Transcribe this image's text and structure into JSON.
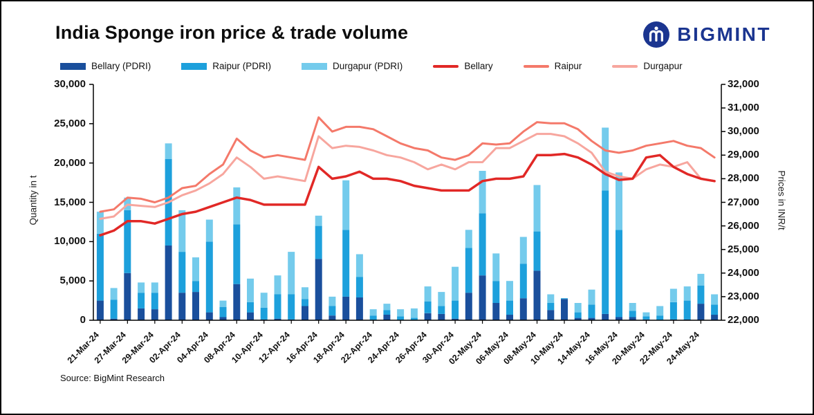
{
  "header": {
    "title": "India Sponge iron price & trade volume",
    "brand": "BIGMINT"
  },
  "footer": {
    "source": "Source: BigMint Research"
  },
  "colors": {
    "brand_navy": "#1b3590",
    "axis_black": "#000000",
    "bar_bellary": "#1a4f9c",
    "bar_raipur": "#1da0dc",
    "bar_durgapur": "#74cbec",
    "line_bellary": "#e12826",
    "line_raipur": "#f4796a",
    "line_durgapur": "#f7a69e"
  },
  "chart_data": {
    "type": "combo",
    "bar_mode": "stacked",
    "grid": "off",
    "legend_position": "top",
    "x_label_every_other_bar": true,
    "x_tick_labels": [
      "21-Mar-24",
      "27-Mar-24",
      "29-Mar-24",
      "02-Apr-24",
      "04-Apr-24",
      "08-Apr-24",
      "10-Apr-24",
      "12-Apr-24",
      "16-Apr-24",
      "18-Apr-24",
      "22-Apr-24",
      "24-Apr-24",
      "26-Apr-24",
      "30-Apr-24",
      "02-May-24",
      "06-May-24",
      "08-May-24",
      "10-May-24",
      "14-May-24",
      "16-May-24",
      "20-May-24",
      "22-May-24",
      "24-May-24"
    ],
    "left_axis": {
      "label": "Quantity in t",
      "min": 0,
      "max": 30000,
      "step": 5000
    },
    "right_axis": {
      "label": "Prices in INR/t",
      "min": 22000,
      "max": 32000,
      "step": 1000
    },
    "bar_series": [
      {
        "name": "Bellary (PDRI)",
        "color": "#1a4f9c",
        "axis": "left",
        "values": [
          2500,
          200,
          6000,
          1500,
          1400,
          9500,
          3500,
          3600,
          1000,
          400,
          4600,
          1000,
          100,
          200,
          100,
          1800,
          7800,
          600,
          3000,
          2900,
          0,
          700,
          0,
          0,
          900,
          800,
          200,
          3500,
          5700,
          2200,
          700,
          2800,
          6300,
          1300,
          2700,
          300,
          300,
          800,
          400,
          400,
          100,
          0,
          100,
          100,
          2100,
          700
        ]
      },
      {
        "name": "Raipur (PDRI)",
        "color": "#1da0dc",
        "axis": "left",
        "values": [
          8500,
          2400,
          8000,
          2000,
          2100,
          11000,
          5200,
          1400,
          9000,
          1300,
          7600,
          1300,
          1500,
          3100,
          3200,
          900,
          4200,
          1200,
          8500,
          2600,
          600,
          600,
          500,
          300,
          1500,
          1000,
          2300,
          5700,
          7900,
          2800,
          1800,
          4400,
          5000,
          900,
          100,
          700,
          1700,
          15700,
          11100,
          800,
          400,
          600,
          2200,
          2400,
          2300,
          1300
        ]
      },
      {
        "name": "Durgapur (PDRI)",
        "color": "#74cbec",
        "axis": "left",
        "values": [
          2800,
          1500,
          1600,
          1300,
          1300,
          2000,
          5300,
          3000,
          2800,
          800,
          4700,
          3000,
          1900,
          2400,
          5400,
          1500,
          1300,
          1200,
          6300,
          2900,
          800,
          800,
          900,
          1200,
          1900,
          1800,
          4300,
          2300,
          5400,
          3500,
          2500,
          3400,
          5900,
          1100,
          0,
          1200,
          1900,
          8000,
          7300,
          1000,
          500,
          1200,
          1700,
          1800,
          1500,
          1300
        ]
      }
    ],
    "line_series": [
      {
        "name": "Bellary",
        "color": "#e12826",
        "axis": "right",
        "values": [
          25600,
          25800,
          26200,
          26200,
          26100,
          26300,
          26500,
          26600,
          26800,
          27000,
          27200,
          27100,
          26900,
          26900,
          26900,
          26900,
          28500,
          28000,
          28100,
          28300,
          28000,
          28000,
          27900,
          27700,
          27600,
          27500,
          27500,
          27500,
          27900,
          28000,
          28000,
          28100,
          29000,
          29000,
          29050,
          28900,
          28600,
          28200,
          27950,
          28000,
          28900,
          29000,
          28500,
          28200,
          28000,
          27900
        ]
      },
      {
        "name": "Raipur",
        "color": "#f4796a",
        "axis": "right",
        "values": [
          26600,
          26700,
          27200,
          27150,
          27000,
          27200,
          27600,
          27700,
          28200,
          28600,
          29700,
          29200,
          28900,
          29000,
          28900,
          28800,
          30600,
          30000,
          30200,
          30200,
          30100,
          29800,
          29500,
          29300,
          29200,
          28900,
          28800,
          29000,
          29500,
          29450,
          29500,
          30000,
          30400,
          30350,
          30350,
          30100,
          29600,
          29200,
          29100,
          29200,
          29400,
          29500,
          29600,
          29400,
          29300,
          28900
        ]
      },
      {
        "name": "Durgapur",
        "color": "#f7a69e",
        "axis": "right",
        "values": [
          26300,
          26400,
          26900,
          26850,
          26800,
          27000,
          27300,
          27500,
          27800,
          28200,
          28900,
          28500,
          28000,
          28100,
          28000,
          27900,
          29800,
          29300,
          29400,
          29350,
          29200,
          29000,
          28900,
          28700,
          28400,
          28600,
          28400,
          28700,
          28700,
          29300,
          29300,
          29600,
          29900,
          29900,
          29800,
          29500,
          29100,
          28300,
          28100,
          28000,
          28400,
          28600,
          28500,
          28700,
          28000,
          27900
        ]
      }
    ]
  }
}
